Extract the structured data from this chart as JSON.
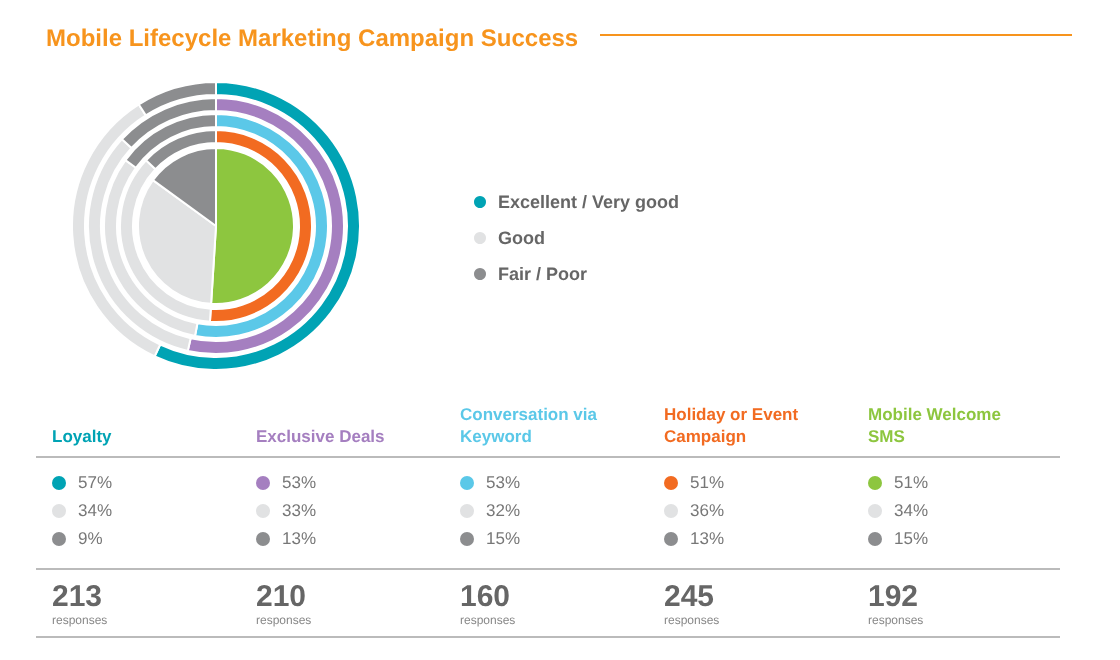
{
  "chart_data": [
    {
      "type": "donut",
      "title": "Mobile Lifecycle Marketing Campaign Success",
      "categories": [
        "Excellent / Very good",
        "Good",
        "Fair / Poor"
      ],
      "series": [
        {
          "colors": [
            "#00a3b4",
            "#e1e2e3",
            "#8c8d8f"
          ],
          "values": [
            57,
            34,
            9
          ]
        },
        {
          "colors": [
            "#a57fc0",
            "#e1e2e3",
            "#8c8d8f"
          ],
          "values": [
            53,
            33,
            13
          ]
        },
        {
          "colors": [
            "#5bc8e8",
            "#e1e2e3",
            "#8c8d8f"
          ],
          "values": [
            53,
            32,
            15
          ]
        },
        {
          "colors": [
            "#f26b21",
            "#e1e2e3",
            "#8c8d8f"
          ],
          "values": [
            51,
            36,
            13
          ]
        },
        {
          "colors": [
            "#8dc63f",
            "#e1e2e3",
            "#8c8d8f"
          ],
          "values": [
            51,
            34,
            15
          ]
        }
      ],
      "legend": "right"
    },
    {
      "type": "other",
      "annotations": [
        "Loyalty",
        "57%",
        "34%",
        "9%",
        "213",
        "responses",
        "Exclusive Deals",
        "53%",
        "33%",
        "13%",
        "210",
        "responses",
        "Conversation via Keyword",
        "53%",
        "32%",
        "15%",
        "160",
        "responses",
        "Holiday or Event Campaign",
        "51%",
        "36%",
        "13%",
        "245",
        "responses",
        "Mobile Welcome SMS",
        "51%",
        "34%",
        "15%",
        "192",
        "responses"
      ]
    }
  ]
}
